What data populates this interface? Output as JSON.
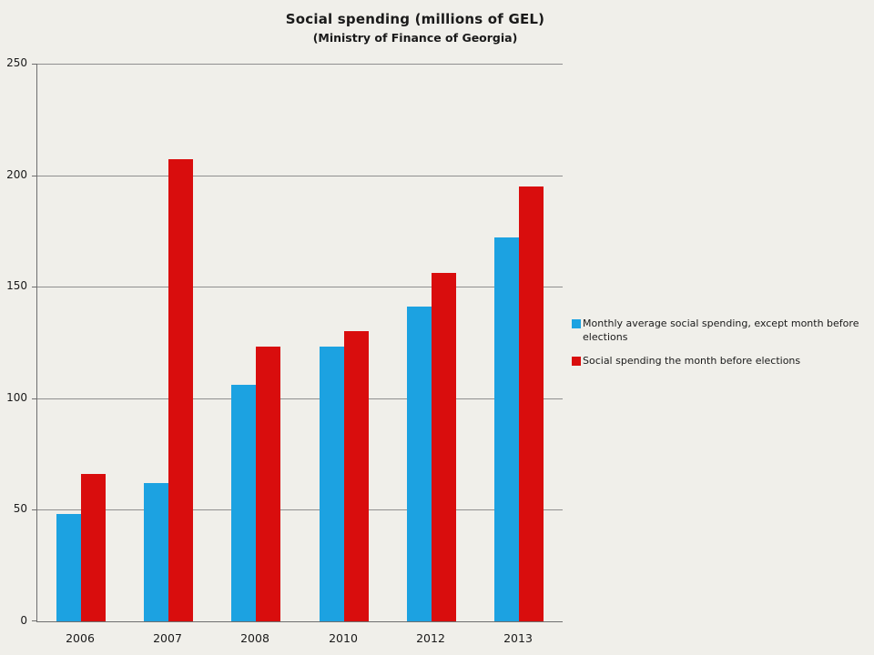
{
  "header": {
    "title": "Social spending (millions of GEL)",
    "subtitle": "(Ministry of Finance of Georgia)"
  },
  "chart_data": {
    "type": "bar",
    "title": "Social spending (millions of GEL)",
    "subtitle": "(Ministry of Finance of Georgia)",
    "categories": [
      "2006",
      "2007",
      "2008",
      "2010",
      "2012",
      "2013"
    ],
    "series": [
      {
        "name": "Monthly average social spending, except month before elections",
        "color": "#1CA2E1",
        "values": [
          48,
          62,
          106,
          123,
          141,
          172
        ]
      },
      {
        "name": "Social spending the month before elections",
        "color": "#D90D0D",
        "values": [
          66,
          207,
          123,
          130,
          156,
          195
        ]
      }
    ],
    "xlabel": "",
    "ylabel": "",
    "ylim": [
      0,
      250
    ],
    "yticks": [
      0,
      50,
      100,
      150,
      200,
      250
    ],
    "grid": true,
    "legend_position": "right"
  },
  "colors": {
    "background": "#F0EFEA",
    "gridline": "#8F8F8F",
    "axis": "#6E6E6E",
    "text": "#1A1A1A"
  }
}
